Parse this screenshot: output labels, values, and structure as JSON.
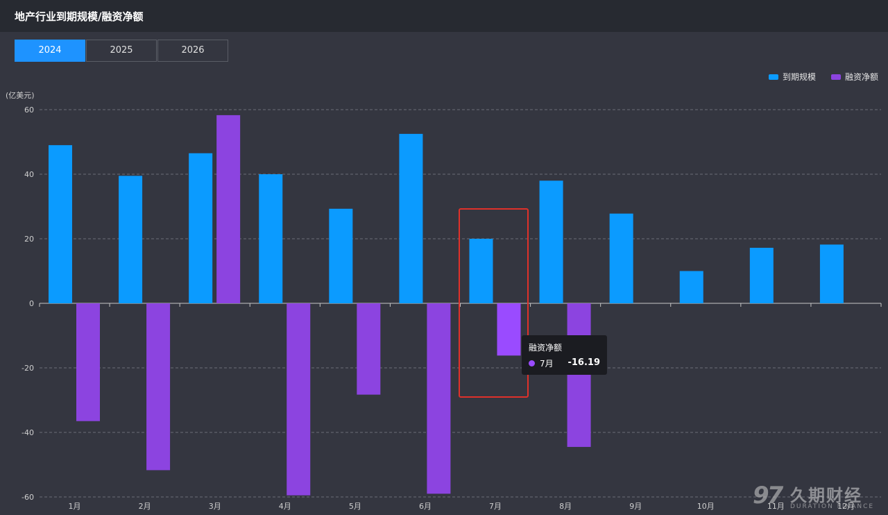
{
  "header": {
    "title": "地产行业到期规模/融资净额"
  },
  "tabs": [
    {
      "label": "2024",
      "active": true
    },
    {
      "label": "2025",
      "active": false
    },
    {
      "label": "2026",
      "active": false
    }
  ],
  "colors": {
    "maturity": "#0b9bff",
    "net_financing": "#8c44e0",
    "highlight": "#9a4bff",
    "box": "#e0312a"
  },
  "chart_data": {
    "type": "bar",
    "unit_label": "(亿美元)",
    "categories": [
      "1月",
      "2月",
      "3月",
      "4月",
      "5月",
      "6月",
      "7月",
      "8月",
      "9月",
      "10月",
      "11月",
      "12月"
    ],
    "series": [
      {
        "name": "到期规模",
        "values": [
          49,
          39.5,
          46.5,
          40,
          29.3,
          52.5,
          20,
          38,
          27.8,
          10,
          17.2,
          18.2
        ]
      },
      {
        "name": "融资净额",
        "values": [
          -36.5,
          -51.7,
          58.3,
          -59.5,
          -28.3,
          -59,
          -16.19,
          -44.5,
          null,
          null,
          null,
          null
        ]
      }
    ],
    "yticks": [
      60,
      40,
      20,
      0,
      -20,
      -40,
      -60
    ],
    "ylim": [
      -60,
      60
    ],
    "grid": true,
    "legend": "top-right",
    "highlight_category": "7月"
  },
  "tooltip": {
    "title": "融资净额",
    "label": "7月",
    "value": "-16.19"
  },
  "watermark": {
    "logo": "97",
    "cn": "久期财经",
    "en": "DURATION FINANCE"
  }
}
